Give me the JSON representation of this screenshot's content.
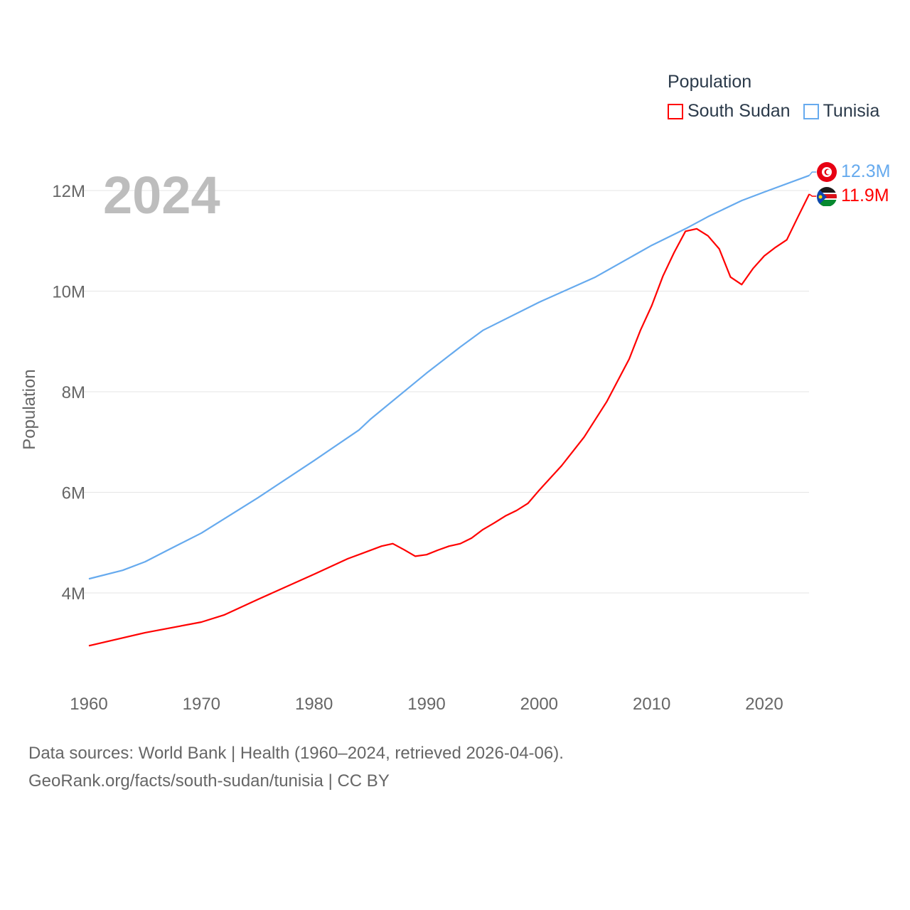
{
  "chart_data": {
    "type": "line",
    "title": "Population",
    "ylabel": "Population",
    "xlabel": "",
    "current_year": "2024",
    "xlim": [
      1960,
      2024
    ],
    "ylim": [
      2.5,
      12.8
    ],
    "x_ticks": [
      "1960",
      "1970",
      "1980",
      "1990",
      "2000",
      "2010",
      "2020"
    ],
    "y_ticks": [
      {
        "v": 4,
        "label": "4M"
      },
      {
        "v": 6,
        "label": "6M"
      },
      {
        "v": 8,
        "label": "8M"
      },
      {
        "v": 10,
        "label": "10M"
      },
      {
        "v": 12,
        "label": "12M"
      }
    ],
    "grid": true,
    "legend_placement": "top-right",
    "series": [
      {
        "name": "South Sudan",
        "color": "#ff0000",
        "end_label": "11.9M",
        "points": [
          [
            1960,
            2.95
          ],
          [
            1965,
            3.21
          ],
          [
            1970,
            3.42
          ],
          [
            1972,
            3.56
          ],
          [
            1975,
            3.87
          ],
          [
            1980,
            4.37
          ],
          [
            1983,
            4.68
          ],
          [
            1986,
            4.93
          ],
          [
            1987,
            4.98
          ],
          [
            1988,
            4.86
          ],
          [
            1989,
            4.73
          ],
          [
            1990,
            4.76
          ],
          [
            1991,
            4.85
          ],
          [
            1992,
            4.93
          ],
          [
            1993,
            4.98
          ],
          [
            1994,
            5.09
          ],
          [
            1995,
            5.26
          ],
          [
            1996,
            5.39
          ],
          [
            1997,
            5.53
          ],
          [
            1998,
            5.64
          ],
          [
            1999,
            5.78
          ],
          [
            2000,
            6.04
          ],
          [
            2002,
            6.53
          ],
          [
            2004,
            7.1
          ],
          [
            2006,
            7.8
          ],
          [
            2008,
            8.65
          ],
          [
            2009,
            9.22
          ],
          [
            2010,
            9.71
          ],
          [
            2011,
            10.3
          ],
          [
            2012,
            10.77
          ],
          [
            2013,
            11.19
          ],
          [
            2014,
            11.24
          ],
          [
            2015,
            11.1
          ],
          [
            2016,
            10.84
          ],
          [
            2017,
            10.28
          ],
          [
            2018,
            10.13
          ],
          [
            2019,
            10.45
          ],
          [
            2020,
            10.7
          ],
          [
            2021,
            10.87
          ],
          [
            2022,
            11.02
          ],
          [
            2023,
            11.48
          ],
          [
            2024,
            11.93
          ]
        ]
      },
      {
        "name": "Tunisia",
        "color": "#66aaee",
        "end_label": "12.3M",
        "points": [
          [
            1960,
            4.28
          ],
          [
            1963,
            4.45
          ],
          [
            1965,
            4.62
          ],
          [
            1967,
            4.85
          ],
          [
            1970,
            5.19
          ],
          [
            1975,
            5.89
          ],
          [
            1980,
            6.63
          ],
          [
            1984,
            7.24
          ],
          [
            1985,
            7.45
          ],
          [
            1990,
            8.37
          ],
          [
            1993,
            8.89
          ],
          [
            1995,
            9.22
          ],
          [
            2000,
            9.78
          ],
          [
            2005,
            10.28
          ],
          [
            2010,
            10.91
          ],
          [
            2013,
            11.24
          ],
          [
            2015,
            11.48
          ],
          [
            2018,
            11.8
          ],
          [
            2020,
            11.97
          ],
          [
            2024,
            12.3
          ]
        ]
      }
    ]
  },
  "footer": {
    "line1": "Data sources: World Bank | Health (1960–2024, retrieved 2026-04-06).",
    "line2": "GeoRank.org/facts/south-sudan/tunisia | CC BY"
  }
}
